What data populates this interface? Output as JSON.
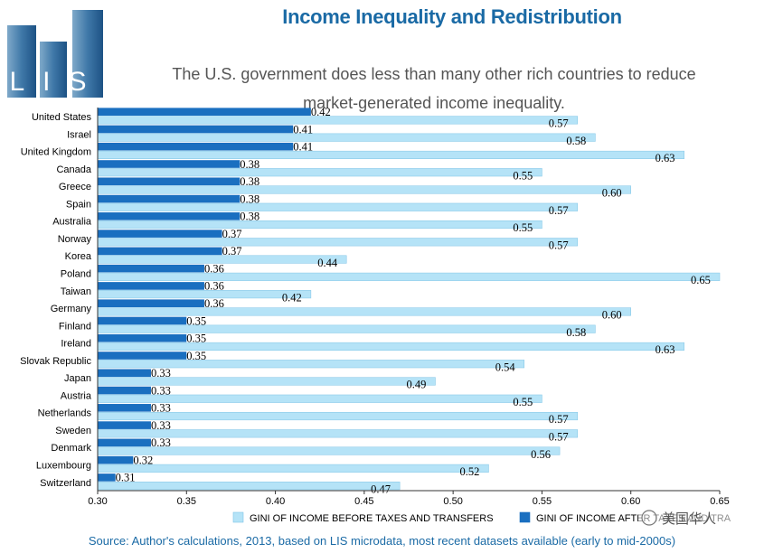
{
  "header": {
    "logo_text": "LIS",
    "title": "Income Inequality and Redistribution",
    "subtitle": "The U.S. government does less than many other rich countries to reduce market-generated income inequality."
  },
  "watermark": "美国华人",
  "source": "Source: Author's calculations, 2013, based on LIS microdata, most recent datasets available (early to mid-2000s)",
  "chart_data": {
    "type": "bar",
    "orientation": "horizontal",
    "categories": [
      "United States",
      "Israel",
      "United Kingdom",
      "Canada",
      "Greece",
      "Spain",
      "Australia",
      "Norway",
      "Korea",
      "Poland",
      "Taiwan",
      "Germany",
      "Finland",
      "Ireland",
      "Slovak Republic",
      "Japan",
      "Austria",
      "Netherlands",
      "Sweden",
      "Denmark",
      "Luxembourg",
      "Switzerland"
    ],
    "series": [
      {
        "name": "GINI OF INCOME AFTER TAXES AND TRANSFERS",
        "legend_label": "GINI OF INCOME AFTER TAXES AND TRA",
        "color": "#1a6fc0",
        "values": [
          0.42,
          0.41,
          0.41,
          0.38,
          0.38,
          0.38,
          0.38,
          0.37,
          0.37,
          0.36,
          0.36,
          0.36,
          0.35,
          0.35,
          0.35,
          0.33,
          0.33,
          0.33,
          0.33,
          0.33,
          0.32,
          0.31
        ]
      },
      {
        "name": "GINI OF INCOME BEFORE TAXES AND TRANSFERS",
        "legend_label": "GINI OF INCOME BEFORE TAXES AND TRANSFERS",
        "color": "#b5e3f7",
        "values": [
          0.57,
          0.58,
          0.63,
          0.55,
          0.6,
          0.57,
          0.55,
          0.57,
          0.44,
          0.65,
          0.42,
          0.6,
          0.58,
          0.63,
          0.54,
          0.49,
          0.55,
          0.57,
          0.57,
          0.56,
          0.52,
          0.47
        ]
      }
    ],
    "legend_order": [
      1,
      0
    ],
    "xlim": [
      0.3,
      0.65
    ],
    "xticks": [
      "0.30",
      "0.35",
      "0.40",
      "0.45",
      "0.50",
      "0.55",
      "0.60",
      "0.65"
    ],
    "title": "Income Inequality and Redistribution",
    "xlabel": "",
    "ylabel": ""
  }
}
